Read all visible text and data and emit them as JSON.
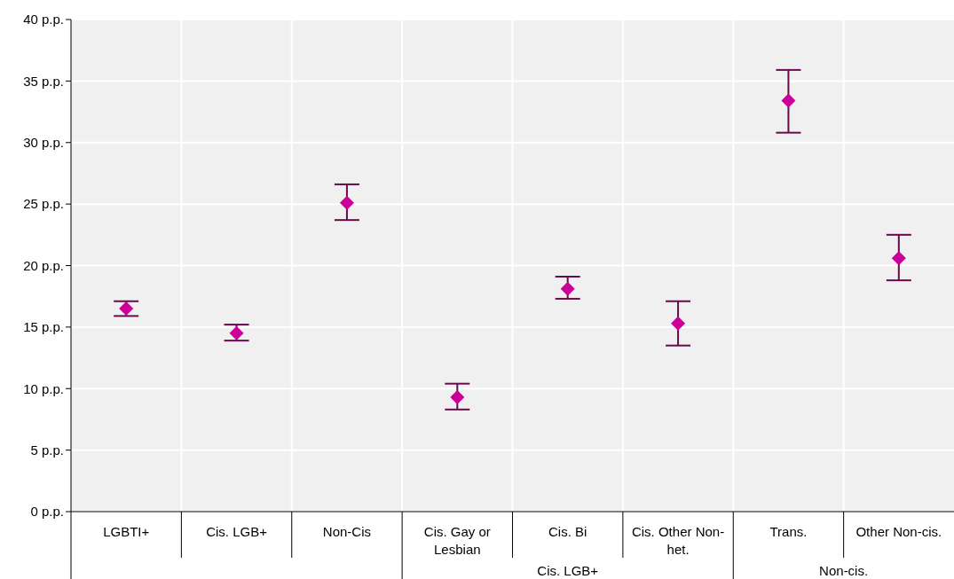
{
  "chart_data": {
    "type": "scatter",
    "marker": "diamond",
    "grid": "y",
    "legend": false,
    "categories": [
      "LGBTI+",
      "Cis. LGB+",
      "Non-Cis",
      "Cis. Gay or Lesbian",
      "Cis. Bi",
      "Cis. Other Non-het.",
      "Trans.",
      "Other Non-cis."
    ],
    "series": [
      {
        "color": "#cc0099",
        "values": [
          16.5,
          14.5,
          25.1,
          9.3,
          18.1,
          15.3,
          33.4,
          20.6
        ],
        "errors": [
          [
            15.9,
            17.1
          ],
          [
            13.9,
            15.2
          ],
          [
            23.7,
            26.6
          ],
          [
            8.3,
            10.4
          ],
          [
            17.3,
            19.1
          ],
          [
            13.5,
            17.1
          ],
          [
            30.8,
            35.9
          ],
          [
            18.8,
            22.5
          ]
        ]
      }
    ],
    "ylim": [
      0,
      40
    ],
    "yticks": [
      {
        "value": 0,
        "label": "0 p.p."
      },
      {
        "value": 5,
        "label": "5 p.p."
      },
      {
        "value": 10,
        "label": "10 p.p."
      },
      {
        "value": 15,
        "label": "15 p.p."
      },
      {
        "value": 20,
        "label": "20 p.p."
      },
      {
        "value": 25,
        "label": "25 p.p."
      },
      {
        "value": 30,
        "label": "30 p.p."
      },
      {
        "value": 35,
        "label": "35 p.p."
      },
      {
        "value": 40,
        "label": "40 p.p."
      }
    ],
    "annotations": [
      "Cis. LGB+",
      "Non-cis."
    ]
  }
}
